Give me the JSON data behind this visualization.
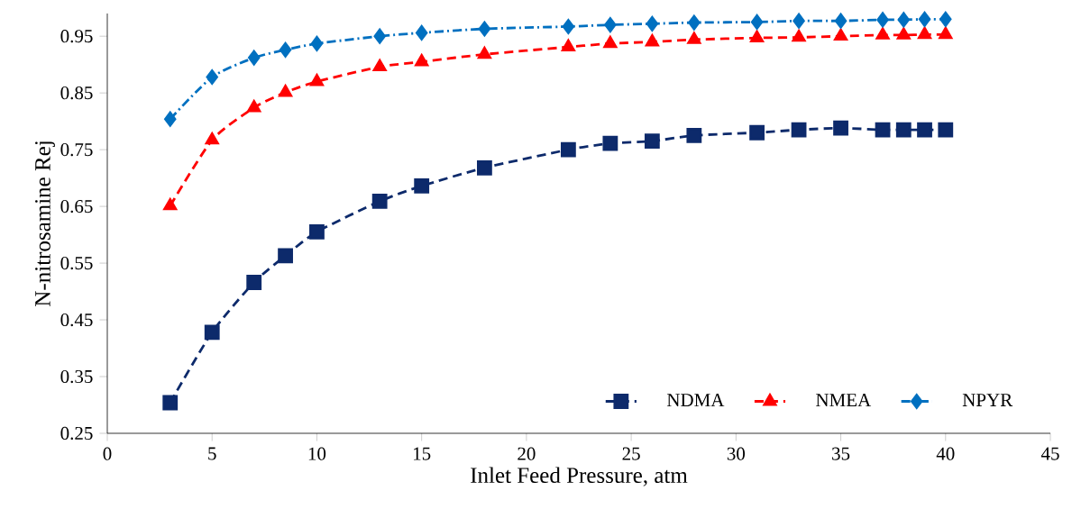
{
  "chart_data": {
    "type": "line",
    "xlabel": "Inlet Feed Pressure, atm",
    "ylabel": "N-nitrosamine Rej",
    "x": [
      3,
      5,
      7,
      8.5,
      10,
      13,
      15,
      18,
      22,
      24,
      26,
      28,
      31,
      33,
      35,
      37,
      38,
      39,
      40
    ],
    "series": [
      {
        "name": "NDMA",
        "color": "#0d2a6b",
        "marker": "square",
        "line_style": "dashed",
        "values": [
          0.304,
          0.428,
          0.516,
          0.563,
          0.605,
          0.659,
          0.686,
          0.718,
          0.75,
          0.761,
          0.765,
          0.775,
          0.78,
          0.785,
          0.788,
          0.785,
          0.785,
          0.785,
          0.785
        ]
      },
      {
        "name": "NMEA",
        "color": "#ff0000",
        "marker": "triangle",
        "line_style": "dashed",
        "values": [
          0.651,
          0.767,
          0.824,
          0.851,
          0.87,
          0.896,
          0.905,
          0.918,
          0.931,
          0.937,
          0.94,
          0.944,
          0.947,
          0.948,
          0.95,
          0.952,
          0.952,
          0.953,
          0.953
        ]
      },
      {
        "name": "NPYR",
        "color": "#0070c0",
        "marker": "diamond",
        "line_style": "dotted",
        "values": [
          0.804,
          0.878,
          0.912,
          0.926,
          0.937,
          0.95,
          0.956,
          0.963,
          0.967,
          0.97,
          0.972,
          0.974,
          0.975,
          0.977,
          0.977,
          0.979,
          0.979,
          0.98,
          0.98
        ]
      }
    ],
    "xlim": [
      0,
      45
    ],
    "xticks": [
      0,
      5,
      10,
      15,
      20,
      25,
      30,
      35,
      40,
      45
    ],
    "ylim": [
      0.25,
      0.99
    ],
    "yticks": [
      0.25,
      0.35,
      0.45,
      0.55,
      0.65,
      0.75,
      0.85,
      0.95
    ],
    "grid": false,
    "legend": "bottom right"
  }
}
